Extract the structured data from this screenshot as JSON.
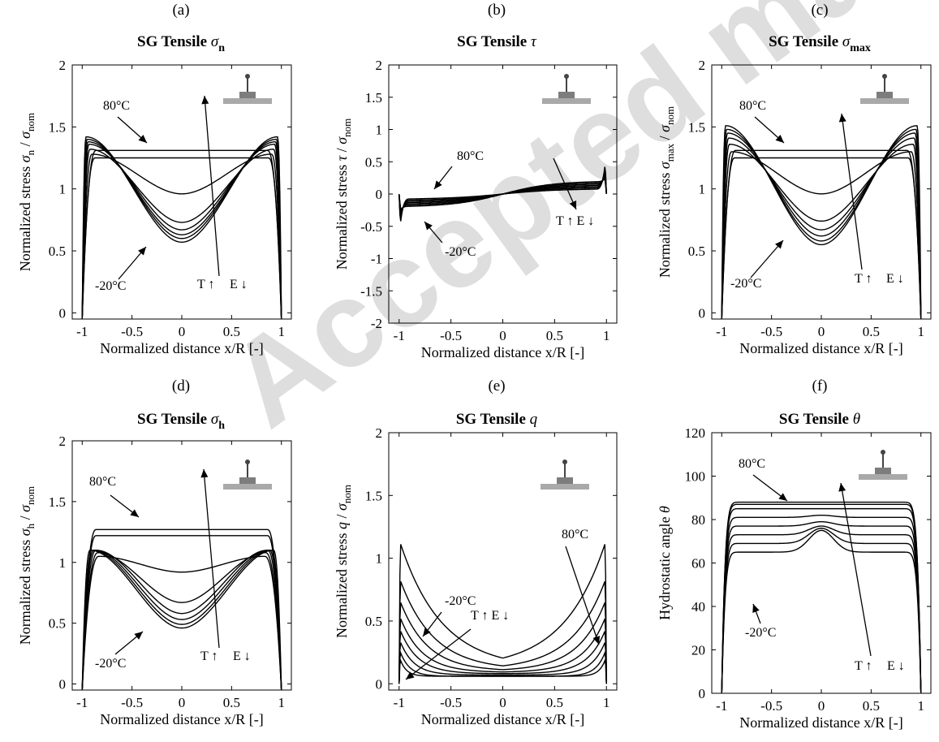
{
  "figure": {
    "watermark": "Accepted manuscript"
  },
  "chart_data": [
    {
      "id": "a",
      "panel_label": "(a)",
      "type": "line",
      "title_main": "SG Tensile",
      "title_symbol": "σ",
      "title_sub": "n",
      "xlabel": "Normalized distance x/R [-]",
      "ylabel_main": "Normalized stress",
      "ylabel_sym": "σ",
      "ylabel_sub1": "n",
      "ylabel_denom": "σ",
      "ylabel_sub2": "nom",
      "xlim": [
        -1.1,
        1.1
      ],
      "ylim": [
        -0.05,
        2.0
      ],
      "xticks": [
        -1,
        -0.5,
        0,
        0.5,
        1
      ],
      "xtick_labels": [
        "-1",
        "-0.5",
        "0",
        "0.5",
        "1"
      ],
      "yticks": [
        0,
        0.5,
        1,
        1.5,
        2
      ],
      "ytick_labels": [
        "0",
        "0.5",
        "1",
        "1.5",
        "2"
      ],
      "annotations": [
        "80°C",
        "-20°C",
        "T ↑",
        "E ↓"
      ],
      "series_model": {
        "family": "symmetric_dome",
        "center": [
          1.31,
          1.25,
          0.96,
          0.73,
          0.67,
          0.63,
          0.6,
          0.57
        ],
        "peak": [
          1.31,
          1.25,
          1.28,
          1.32,
          1.36,
          1.38,
          1.4,
          1.42
        ],
        "peak_x": [
          0.86,
          0.87,
          0.9,
          0.92,
          0.93,
          0.94,
          0.95,
          0.96
        ],
        "edge": -0.05
      }
    },
    {
      "id": "b",
      "panel_label": "(b)",
      "type": "line",
      "title_main": "SG Tensile",
      "title_symbol": "τ",
      "title_sub": "",
      "xlabel": "Normalized distance x/R [-]",
      "ylabel_main": "Normalized stress",
      "ylabel_sym": "τ",
      "ylabel_sub1": "",
      "ylabel_denom": "σ",
      "ylabel_sub2": "nom",
      "xlim": [
        -1.1,
        1.1
      ],
      "ylim": [
        -2.0,
        2.0
      ],
      "xticks": [
        -1,
        -0.5,
        0,
        0.5,
        1
      ],
      "xtick_labels": [
        "-1",
        "-0.5",
        "0",
        "0.5",
        "1"
      ],
      "yticks": [
        -2,
        -1.5,
        -1,
        -0.5,
        0,
        0.5,
        1,
        1.5,
        2
      ],
      "ytick_labels": [
        "-2",
        "-1.5",
        "-1",
        "-0.5",
        "0",
        "0.5",
        "1",
        "1.5",
        "2"
      ],
      "annotations": [
        "80°C",
        "-20°C",
        "T ↑ E ↓"
      ],
      "series_model": {
        "family": "antisymmetric",
        "amp": [
          0.06,
          0.08,
          0.1,
          0.12,
          0.14,
          0.16,
          0.18
        ],
        "tip": [
          0.63,
          0.55,
          0.48,
          0.42,
          0.36,
          0.3,
          0.25
        ]
      }
    },
    {
      "id": "c",
      "panel_label": "(c)",
      "type": "line",
      "title_main": "SG Tensile",
      "title_symbol": "σ",
      "title_sub": "max",
      "xlabel": "Normalized distance x/R [-]",
      "ylabel_main": "Normalized stress",
      "ylabel_sym": "σ",
      "ylabel_sub1": "max",
      "ylabel_denom": "σ",
      "ylabel_sub2": "nom",
      "xlim": [
        -1.1,
        1.1
      ],
      "ylim": [
        -0.05,
        2.0
      ],
      "xticks": [
        -1,
        -0.5,
        0,
        0.5,
        1
      ],
      "xtick_labels": [
        "-1",
        "-0.5",
        "0",
        "0.5",
        "1"
      ],
      "yticks": [
        0,
        0.5,
        1,
        1.5,
        2
      ],
      "ytick_labels": [
        "0",
        "0.5",
        "1",
        "1.5",
        "2"
      ],
      "annotations": [
        "80°C",
        "-20°C",
        "T ↑",
        "E ↓"
      ],
      "series_model": {
        "family": "symmetric_dome",
        "center": [
          1.31,
          1.25,
          0.96,
          0.74,
          0.67,
          0.62,
          0.58,
          0.55
        ],
        "peak": [
          1.31,
          1.25,
          1.3,
          1.36,
          1.41,
          1.45,
          1.48,
          1.51
        ],
        "peak_x": [
          0.86,
          0.87,
          0.9,
          0.92,
          0.93,
          0.94,
          0.95,
          0.96
        ],
        "edge": -0.05
      }
    },
    {
      "id": "d",
      "panel_label": "(d)",
      "type": "line",
      "title_main": "SG Tensile",
      "title_symbol": "σ",
      "title_sub": "h",
      "xlabel": "Normalized distance x/R [-]",
      "ylabel_main": "Normalized stress",
      "ylabel_sym": "σ",
      "ylabel_sub1": "h",
      "ylabel_denom": "σ",
      "ylabel_sub2": "nom",
      "xlim": [
        -1.1,
        1.1
      ],
      "ylim": [
        -0.05,
        2.0
      ],
      "xticks": [
        -1,
        -0.5,
        0,
        0.5,
        1
      ],
      "xtick_labels": [
        "-1",
        "-0.5",
        "0",
        "0.5",
        "1"
      ],
      "yticks": [
        0,
        0.5,
        1,
        1.5,
        2
      ],
      "ytick_labels": [
        "0",
        "0.5",
        "1",
        "1.5",
        "2"
      ],
      "annotations": [
        "80°C",
        "-20°C",
        "T ↑",
        "E ↓"
      ],
      "series_model": {
        "family": "symmetric_dome",
        "center": [
          1.27,
          1.22,
          0.92,
          0.67,
          0.58,
          0.53,
          0.49,
          0.46
        ],
        "peak": [
          1.27,
          1.22,
          1.05,
          1.08,
          1.1,
          1.1,
          1.1,
          1.1
        ],
        "peak_x": [
          0.86,
          0.86,
          0.83,
          0.84,
          0.86,
          0.88,
          0.9,
          0.92
        ],
        "edge": -0.05
      }
    },
    {
      "id": "e",
      "panel_label": "(e)",
      "type": "line",
      "title_main": "SG Tensile",
      "title_symbol": "q",
      "title_sub": "",
      "xlabel": "Normalized distance x/R [-]",
      "ylabel_main": "Normalized stress",
      "ylabel_sym": "q",
      "ylabel_sub1": "",
      "ylabel_denom": "σ",
      "ylabel_sub2": "nom",
      "xlim": [
        -1.1,
        1.1
      ],
      "ylim": [
        -0.05,
        2.0
      ],
      "xticks": [
        -1,
        -0.5,
        0,
        0.5,
        1
      ],
      "xtick_labels": [
        "-1",
        "-0.5",
        "0",
        "0.5",
        "1"
      ],
      "yticks": [
        0,
        0.5,
        1,
        1.5,
        2
      ],
      "ytick_labels": [
        "0",
        "0.5",
        "1",
        "1.5",
        "2"
      ],
      "annotations": [
        "-20°C",
        "T ↑ E ↓",
        "80°C"
      ],
      "series_model": {
        "family": "valley",
        "center": [
          0.12,
          0.11,
          0.1,
          0.09,
          0.08,
          0.07,
          0.06,
          0.06
        ],
        "edge": [
          1.15,
          0.85,
          0.68,
          0.55,
          0.45,
          0.36,
          0.28,
          0.22
        ],
        "width": [
          0.4,
          0.32,
          0.26,
          0.21,
          0.17,
          0.13,
          0.09,
          0.06
        ]
      }
    },
    {
      "id": "f",
      "panel_label": "(f)",
      "type": "line",
      "title_main": "SG Tensile",
      "title_symbol": "θ",
      "title_sub": "",
      "xlabel": "Normalized distance x/R [-]",
      "ylabel_main": "Hydrostatic angle",
      "ylabel_sym": "θ",
      "ylabel_sub1": "",
      "ylabel_denom": "",
      "ylabel_sub2": "",
      "xlim": [
        -1.1,
        1.1
      ],
      "ylim": [
        0,
        120
      ],
      "xticks": [
        -1,
        -0.5,
        0,
        0.5,
        1
      ],
      "xtick_labels": [
        "-1",
        "-0.5",
        "0",
        "0.5",
        "1"
      ],
      "yticks": [
        0,
        20,
        40,
        60,
        80,
        100,
        120
      ],
      "ytick_labels": [
        "0",
        "20",
        "40",
        "60",
        "80",
        "100",
        "120"
      ],
      "annotations": [
        "80°C",
        "-20°C",
        "T ↑",
        "E ↓"
      ],
      "series_model": {
        "family": "plateau_bump",
        "plateau": [
          88,
          87,
          85,
          81,
          77,
          73,
          69,
          65
        ],
        "center": [
          88,
          87,
          85,
          82,
          79,
          77,
          76,
          75
        ]
      }
    }
  ]
}
